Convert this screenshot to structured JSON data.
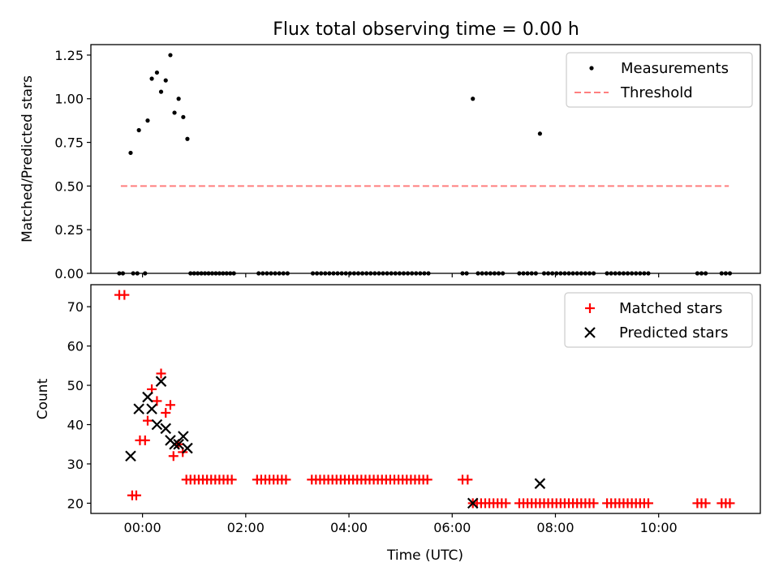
{
  "chart_data": [
    {
      "type": "scatter",
      "title": "Flux total observing time = 0.00 h",
      "xlabel": "",
      "ylabel": "Matched/Predicted stars",
      "xlim": [
        -1.0,
        11.97
      ],
      "ylim": [
        0,
        1.31
      ],
      "yticks": [
        0,
        0.25,
        0.5,
        0.75,
        1.0,
        1.25
      ],
      "ytick_labels": [
        "0.00",
        "0.25",
        "0.50",
        "0.75",
        "1.00",
        "1.25"
      ],
      "legend": {
        "placement": "top-right",
        "entries": [
          "Measurements",
          "Threshold"
        ]
      },
      "series": [
        {
          "name": "Measurements",
          "style": "dot",
          "color": "#000000",
          "points": [
            [
              -0.45,
              0
            ],
            [
              -0.38,
              0
            ],
            [
              -0.18,
              0
            ],
            [
              -0.1,
              0
            ],
            [
              0.05,
              0
            ],
            [
              -0.23,
              0.69
            ],
            [
              -0.07,
              0.82
            ],
            [
              0.1,
              0.875
            ],
            [
              0.18,
              1.115
            ],
            [
              0.28,
              1.15
            ],
            [
              0.36,
              1.04
            ],
            [
              0.45,
              1.105
            ],
            [
              0.54,
              1.25
            ],
            [
              0.62,
              0.92
            ],
            [
              0.7,
              1.0
            ],
            [
              0.79,
              0.895
            ],
            [
              0.87,
              0.77
            ],
            [
              0.93,
              0
            ],
            [
              1.0,
              0
            ],
            [
              1.07,
              0
            ],
            [
              1.14,
              0
            ],
            [
              1.21,
              0
            ],
            [
              1.28,
              0
            ],
            [
              1.35,
              0
            ],
            [
              1.42,
              0
            ],
            [
              1.49,
              0
            ],
            [
              1.56,
              0
            ],
            [
              1.63,
              0
            ],
            [
              1.7,
              0
            ],
            [
              1.77,
              0
            ],
            [
              2.25,
              0
            ],
            [
              2.33,
              0
            ],
            [
              2.41,
              0
            ],
            [
              2.49,
              0
            ],
            [
              2.57,
              0
            ],
            [
              2.65,
              0
            ],
            [
              2.73,
              0
            ],
            [
              2.81,
              0
            ],
            [
              3.3,
              0
            ],
            [
              3.38,
              0
            ],
            [
              3.46,
              0
            ],
            [
              3.54,
              0
            ],
            [
              3.62,
              0
            ],
            [
              3.7,
              0
            ],
            [
              3.78,
              0
            ],
            [
              3.86,
              0
            ],
            [
              3.94,
              0
            ],
            [
              4.02,
              0
            ],
            [
              4.1,
              0
            ],
            [
              4.18,
              0
            ],
            [
              4.26,
              0
            ],
            [
              4.34,
              0
            ],
            [
              4.42,
              0
            ],
            [
              4.5,
              0
            ],
            [
              4.58,
              0
            ],
            [
              4.66,
              0
            ],
            [
              4.74,
              0
            ],
            [
              4.82,
              0
            ],
            [
              4.9,
              0
            ],
            [
              4.98,
              0
            ],
            [
              5.06,
              0
            ],
            [
              5.14,
              0
            ],
            [
              5.22,
              0
            ],
            [
              5.3,
              0
            ],
            [
              5.38,
              0
            ],
            [
              5.46,
              0
            ],
            [
              5.54,
              0
            ],
            [
              6.2,
              0
            ],
            [
              6.28,
              0
            ],
            [
              6.4,
              1.0
            ],
            [
              6.5,
              0
            ],
            [
              6.58,
              0
            ],
            [
              6.66,
              0
            ],
            [
              6.74,
              0
            ],
            [
              6.82,
              0
            ],
            [
              6.9,
              0
            ],
            [
              6.98,
              0
            ],
            [
              7.3,
              0
            ],
            [
              7.38,
              0
            ],
            [
              7.46,
              0
            ],
            [
              7.54,
              0
            ],
            [
              7.62,
              0
            ],
            [
              7.7,
              0.8
            ],
            [
              7.78,
              0
            ],
            [
              7.86,
              0
            ],
            [
              7.94,
              0
            ],
            [
              8.02,
              0
            ],
            [
              8.1,
              0
            ],
            [
              8.18,
              0
            ],
            [
              8.26,
              0
            ],
            [
              8.34,
              0
            ],
            [
              8.42,
              0
            ],
            [
              8.5,
              0
            ],
            [
              8.58,
              0
            ],
            [
              8.66,
              0
            ],
            [
              8.74,
              0
            ],
            [
              9.0,
              0
            ],
            [
              9.08,
              0
            ],
            [
              9.16,
              0
            ],
            [
              9.24,
              0
            ],
            [
              9.32,
              0
            ],
            [
              9.4,
              0
            ],
            [
              9.48,
              0
            ],
            [
              9.56,
              0
            ],
            [
              9.64,
              0
            ],
            [
              9.72,
              0
            ],
            [
              9.8,
              0
            ],
            [
              10.75,
              0
            ],
            [
              10.83,
              0
            ],
            [
              10.91,
              0
            ],
            [
              11.22,
              0
            ],
            [
              11.3,
              0
            ],
            [
              11.38,
              0
            ]
          ]
        },
        {
          "name": "Threshold",
          "style": "dashed-line",
          "color": "#ff7f7f",
          "points": [
            [
              -0.42,
              0.5
            ],
            [
              11.36,
              0.5
            ]
          ]
        }
      ]
    },
    {
      "type": "scatter",
      "title": "",
      "xlabel": "Time (UTC)",
      "ylabel": "Count",
      "xlim": [
        -1.0,
        11.97
      ],
      "ylim": [
        17.4,
        75.6
      ],
      "yticks": [
        20,
        30,
        40,
        50,
        60,
        70
      ],
      "ytick_labels": [
        "20",
        "30",
        "40",
        "50",
        "60",
        "70"
      ],
      "xticks": [
        0,
        2,
        4,
        6,
        8,
        10
      ],
      "xtick_labels": [
        "00:00",
        "02:00",
        "04:00",
        "06:00",
        "08:00",
        "10:00"
      ],
      "legend": {
        "placement": "top-right",
        "entries": [
          "Matched stars",
          "Predicted stars"
        ]
      },
      "series": [
        {
          "name": "Matched stars",
          "style": "plus",
          "color": "#ff0000",
          "points": [
            [
              -0.45,
              73
            ],
            [
              -0.35,
              73
            ],
            [
              -0.2,
              22
            ],
            [
              -0.12,
              22
            ],
            [
              -0.05,
              36
            ],
            [
              0.05,
              36
            ],
            [
              0.1,
              41
            ],
            [
              0.18,
              49
            ],
            [
              0.28,
              46
            ],
            [
              0.36,
              53
            ],
            [
              0.45,
              43
            ],
            [
              0.54,
              45
            ],
            [
              0.6,
              32
            ],
            [
              0.7,
              35
            ],
            [
              0.78,
              33
            ],
            [
              0.85,
              26
            ],
            [
              0.93,
              26
            ],
            [
              1.01,
              26
            ],
            [
              1.09,
              26
            ],
            [
              1.17,
              26
            ],
            [
              1.25,
              26
            ],
            [
              1.33,
              26
            ],
            [
              1.41,
              26
            ],
            [
              1.49,
              26
            ],
            [
              1.57,
              26
            ],
            [
              1.65,
              26
            ],
            [
              1.73,
              26
            ],
            [
              2.22,
              26
            ],
            [
              2.3,
              26
            ],
            [
              2.38,
              26
            ],
            [
              2.46,
              26
            ],
            [
              2.54,
              26
            ],
            [
              2.62,
              26
            ],
            [
              2.7,
              26
            ],
            [
              2.78,
              26
            ],
            [
              3.28,
              26
            ],
            [
              3.36,
              26
            ],
            [
              3.44,
              26
            ],
            [
              3.52,
              26
            ],
            [
              3.6,
              26
            ],
            [
              3.68,
              26
            ],
            [
              3.76,
              26
            ],
            [
              3.84,
              26
            ],
            [
              3.92,
              26
            ],
            [
              4.0,
              26
            ],
            [
              4.08,
              26
            ],
            [
              4.16,
              26
            ],
            [
              4.24,
              26
            ],
            [
              4.32,
              26
            ],
            [
              4.4,
              26
            ],
            [
              4.48,
              26
            ],
            [
              4.56,
              26
            ],
            [
              4.64,
              26
            ],
            [
              4.72,
              26
            ],
            [
              4.8,
              26
            ],
            [
              4.88,
              26
            ],
            [
              4.96,
              26
            ],
            [
              5.04,
              26
            ],
            [
              5.12,
              26
            ],
            [
              5.2,
              26
            ],
            [
              5.28,
              26
            ],
            [
              5.36,
              26
            ],
            [
              5.44,
              26
            ],
            [
              5.52,
              26
            ],
            [
              6.2,
              26
            ],
            [
              6.3,
              26
            ],
            [
              6.4,
              20
            ],
            [
              6.48,
              20
            ],
            [
              6.56,
              20
            ],
            [
              6.64,
              20
            ],
            [
              6.72,
              20
            ],
            [
              6.8,
              20
            ],
            [
              6.88,
              20
            ],
            [
              6.96,
              20
            ],
            [
              7.04,
              20
            ],
            [
              7.3,
              20
            ],
            [
              7.38,
              20
            ],
            [
              7.46,
              20
            ],
            [
              7.54,
              20
            ],
            [
              7.62,
              20
            ],
            [
              7.7,
              20
            ],
            [
              7.78,
              20
            ],
            [
              7.86,
              20
            ],
            [
              7.94,
              20
            ],
            [
              8.02,
              20
            ],
            [
              8.1,
              20
            ],
            [
              8.18,
              20
            ],
            [
              8.26,
              20
            ],
            [
              8.34,
              20
            ],
            [
              8.42,
              20
            ],
            [
              8.5,
              20
            ],
            [
              8.58,
              20
            ],
            [
              8.66,
              20
            ],
            [
              8.74,
              20
            ],
            [
              9.0,
              20
            ],
            [
              9.08,
              20
            ],
            [
              9.16,
              20
            ],
            [
              9.24,
              20
            ],
            [
              9.32,
              20
            ],
            [
              9.4,
              20
            ],
            [
              9.48,
              20
            ],
            [
              9.56,
              20
            ],
            [
              9.64,
              20
            ],
            [
              9.72,
              20
            ],
            [
              9.8,
              20
            ],
            [
              10.75,
              20
            ],
            [
              10.83,
              20
            ],
            [
              10.91,
              20
            ],
            [
              11.22,
              20
            ],
            [
              11.3,
              20
            ],
            [
              11.38,
              20
            ]
          ]
        },
        {
          "name": "Predicted stars",
          "style": "x",
          "color": "#000000",
          "points": [
            [
              -0.23,
              32
            ],
            [
              -0.07,
              44
            ],
            [
              0.1,
              47
            ],
            [
              0.18,
              44
            ],
            [
              0.28,
              40
            ],
            [
              0.36,
              51
            ],
            [
              0.45,
              39
            ],
            [
              0.54,
              36
            ],
            [
              0.62,
              35
            ],
            [
              0.7,
              35
            ],
            [
              0.79,
              37
            ],
            [
              0.87,
              34
            ],
            [
              6.4,
              20
            ],
            [
              7.7,
              25
            ]
          ]
        }
      ]
    }
  ]
}
